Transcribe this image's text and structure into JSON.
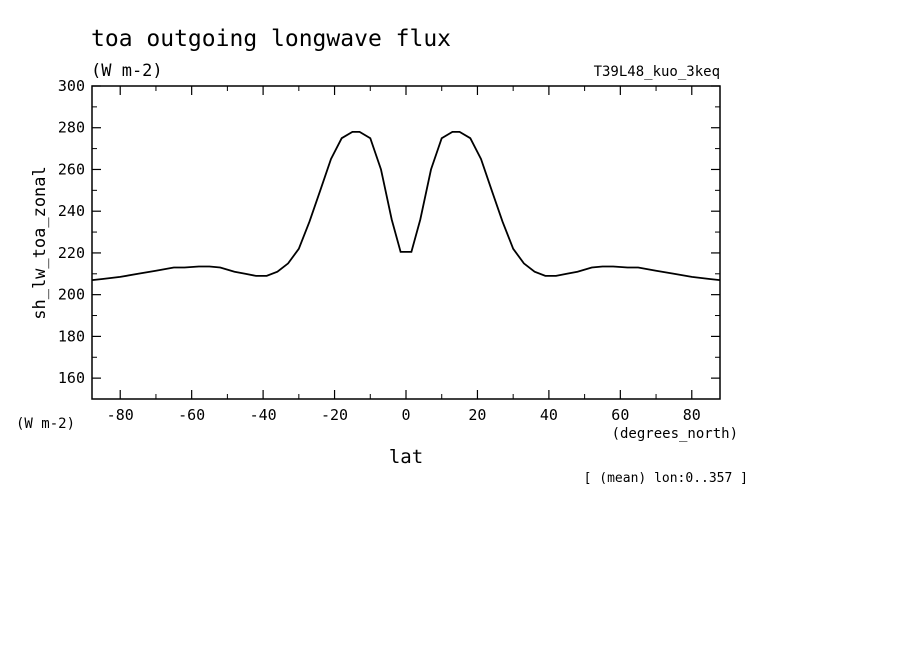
{
  "chart_data": {
    "type": "line",
    "title": "toa outgoing longwave flux",
    "subtitle": "(W m-2)",
    "run_label": "T39L48_kuo_3keq",
    "xlabel": "lat",
    "x_units": "(degrees_north)",
    "ylabel": "sh_lw_toa_zonal",
    "y_units": "(W m-2)",
    "footer": "[ (mean) lon:0..357 ]",
    "xlim": [
      -87.9,
      87.9
    ],
    "ylim": [
      150,
      300
    ],
    "x_ticks": [
      -80,
      -60,
      -40,
      -20,
      0,
      20,
      40,
      60,
      80
    ],
    "x_tick_labels": [
      "-80",
      "-60",
      "-40",
      "-20",
      "0",
      "20",
      "40",
      "60",
      "80"
    ],
    "y_ticks": [
      160,
      180,
      200,
      220,
      240,
      260,
      280,
      300
    ],
    "y_tick_labels": [
      "160",
      "180",
      "200",
      "220",
      "240",
      "260",
      "280",
      "300"
    ],
    "grid": false,
    "series": [
      {
        "x": [
          -87.9,
          -85,
          -80,
          -75,
          -70,
          -65,
          -62,
          -58,
          -55,
          -52,
          -48,
          -45,
          -42,
          -39,
          -36,
          -33,
          -30,
          -27,
          -24,
          -21,
          -18,
          -15,
          -13,
          -10,
          -7,
          -4,
          -1.5,
          1.5,
          4,
          7,
          10,
          13,
          15,
          18,
          21,
          24,
          27,
          30,
          33,
          36,
          39,
          42,
          45,
          48,
          52,
          55,
          58,
          62,
          65,
          70,
          75,
          80,
          85,
          87.9
        ],
        "y": [
          207,
          207.5,
          208.5,
          210,
          211.5,
          213,
          213,
          213.5,
          213.5,
          213,
          211,
          210,
          209,
          209,
          211,
          215,
          222,
          235,
          250,
          265,
          275,
          278,
          278,
          275,
          260,
          236,
          220.5,
          220.5,
          236,
          260,
          275,
          278,
          278,
          275,
          265,
          250,
          235,
          222,
          215,
          211,
          209,
          209,
          210,
          211,
          213,
          213.5,
          213.5,
          213,
          213,
          211.5,
          210,
          208.5,
          207.5,
          207
        ]
      }
    ],
    "colors": {
      "line": "#000000",
      "background": "#ffffff"
    }
  }
}
